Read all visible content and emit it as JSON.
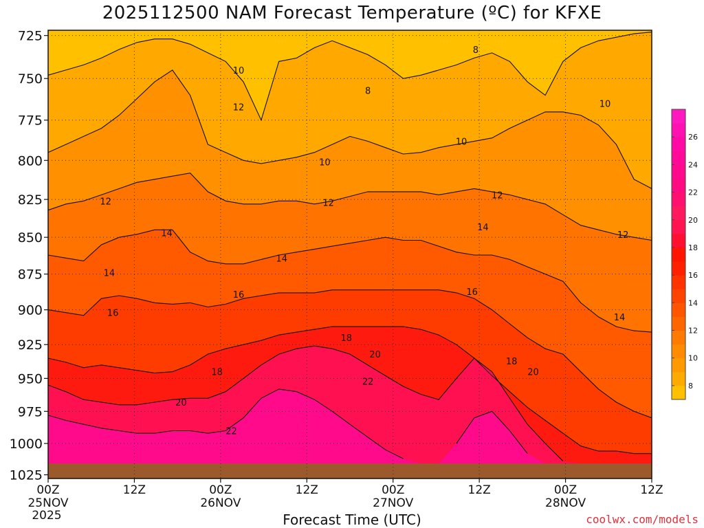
{
  "title": "2025112500 NAM Forecast Temperature (ºC) for KFXE",
  "watermark": "coolwx.com/models",
  "chart_data": {
    "type": "heatmap",
    "title": "2025112500 NAM Forecast Temperature (ºC) for KFXE",
    "xlabel": "Forecast Time (UTC)",
    "ylabel": "",
    "x_ticks": [
      {
        "hour": 0,
        "label": "00Z",
        "date": "25NOV",
        "year": "2025"
      },
      {
        "hour": 12,
        "label": "12Z"
      },
      {
        "hour": 24,
        "label": "00Z",
        "date": "26NOV"
      },
      {
        "hour": 36,
        "label": "12Z"
      },
      {
        "hour": 48,
        "label": "00Z",
        "date": "27NOV"
      },
      {
        "hour": 60,
        "label": "12Z"
      },
      {
        "hour": 72,
        "label": "00Z",
        "date": "28NOV"
      },
      {
        "hour": 84,
        "label": "12Z"
      }
    ],
    "xlim": [
      0,
      84
    ],
    "y_ticks": [
      725,
      750,
      775,
      800,
      825,
      850,
      875,
      900,
      925,
      950,
      975,
      1000,
      1025
    ],
    "ylim": [
      722,
      1028
    ],
    "y_scale": "log",
    "y_inverted": true,
    "grid": true,
    "ground_level_hpa": 1016,
    "ground_color": "#9c5a2c",
    "colorbar": {
      "ticks": [
        8,
        10,
        12,
        14,
        16,
        18,
        20,
        22,
        24,
        26
      ],
      "levels": [
        7,
        8,
        9,
        10,
        11,
        12,
        13,
        14,
        15,
        16,
        17,
        18,
        19,
        20,
        21,
        22,
        23,
        24,
        25,
        26,
        27,
        28
      ],
      "colors": [
        "#ffc000",
        "#ffaa00",
        "#ff9900",
        "#ff8c00",
        "#ff7a00",
        "#ff6600",
        "#ff5500",
        "#ff4400",
        "#ff3300",
        "#ff2000",
        "#ff1500",
        "#ff1030",
        "#ff1450",
        "#ff1a60",
        "#ff1070",
        "#ff0a80",
        "#ff0a8c",
        "#ff0a98",
        "#ff0aa4",
        "#ff10b0",
        "#ff18c0"
      ]
    },
    "series": [
      {
        "level": 8,
        "values": [
          748,
          745,
          742,
          738,
          733,
          729,
          727,
          727,
          730,
          735,
          740,
          752,
          775,
          740,
          738,
          732,
          728,
          732,
          736,
          742,
          750,
          748,
          745,
          742,
          738,
          735,
          740,
          752,
          760,
          740,
          732,
          728,
          726,
          724,
          723
        ]
      },
      {
        "level": 10,
        "values": [
          795,
          790,
          785,
          780,
          772,
          762,
          752,
          745,
          760,
          790,
          795,
          800,
          802,
          800,
          798,
          795,
          790,
          785,
          788,
          792,
          796,
          795,
          792,
          790,
          788,
          786,
          780,
          775,
          770,
          770,
          772,
          778,
          790,
          812,
          818
        ]
      },
      {
        "level": 12,
        "values": [
          832,
          828,
          826,
          822,
          818,
          814,
          812,
          810,
          808,
          820,
          826,
          828,
          828,
          826,
          826,
          828,
          826,
          823,
          820,
          820,
          820,
          820,
          822,
          820,
          818,
          820,
          822,
          825,
          828,
          835,
          842,
          845,
          848,
          850,
          852
        ]
      },
      {
        "level": 14,
        "values": [
          862,
          864,
          866,
          855,
          850,
          848,
          845,
          845,
          860,
          866,
          868,
          868,
          865,
          862,
          860,
          858,
          856,
          854,
          852,
          850,
          852,
          852,
          856,
          860,
          862,
          862,
          865,
          870,
          875,
          880,
          895,
          905,
          912,
          915,
          916
        ]
      },
      {
        "level": 16,
        "values": [
          900,
          902,
          904,
          892,
          890,
          892,
          895,
          896,
          895,
          898,
          896,
          892,
          890,
          888,
          888,
          888,
          886,
          886,
          886,
          886,
          886,
          886,
          886,
          888,
          892,
          900,
          910,
          920,
          928,
          932,
          945,
          958,
          968,
          975,
          980
        ]
      },
      {
        "level": 18,
        "values": [
          935,
          938,
          942,
          940,
          942,
          944,
          946,
          945,
          940,
          932,
          928,
          925,
          922,
          918,
          916,
          914,
          912,
          912,
          912,
          912,
          912,
          914,
          918,
          925,
          935,
          948,
          960,
          972,
          982,
          992,
          1002,
          1006,
          1006,
          1008,
          1008
        ]
      },
      {
        "level": 20,
        "values": [
          955,
          960,
          966,
          968,
          970,
          970,
          968,
          966,
          965,
          965,
          960,
          950,
          940,
          932,
          928,
          926,
          928,
          932,
          940,
          948,
          956,
          962,
          966,
          950,
          935,
          945,
          965,
          985,
          1000,
          1014,
          1016,
          1016,
          1016,
          1016,
          1016
        ]
      },
      {
        "level": 22,
        "values": [
          978,
          982,
          985,
          988,
          990,
          992,
          992,
          990,
          990,
          992,
          990,
          980,
          965,
          958,
          960,
          966,
          975,
          985,
          995,
          1005,
          1012,
          1016,
          1016,
          1000,
          980,
          975,
          990,
          1008,
          1016,
          1016,
          1016,
          1016,
          1016,
          1016,
          1016
        ]
      }
    ],
    "contour_labels": [
      {
        "value": "8",
        "hour": 59.5,
        "hpa": 733
      },
      {
        "value": "8",
        "hour": 44.5,
        "hpa": 757
      },
      {
        "value": "10",
        "hour": 26.5,
        "hpa": 745
      },
      {
        "value": "10",
        "hour": 57.5,
        "hpa": 788
      },
      {
        "value": "10",
        "hour": 77.5,
        "hpa": 765
      },
      {
        "value": "10",
        "hour": 38.5,
        "hpa": 801
      },
      {
        "value": "12",
        "hour": 26.5,
        "hpa": 767
      },
      {
        "value": "12",
        "hour": 8,
        "hpa": 826
      },
      {
        "value": "12",
        "hour": 39,
        "hpa": 827
      },
      {
        "value": "12",
        "hour": 62.5,
        "hpa": 822
      },
      {
        "value": "12",
        "hour": 80,
        "hpa": 848
      },
      {
        "value": "14",
        "hour": 16.5,
        "hpa": 847
      },
      {
        "value": "14",
        "hour": 8.5,
        "hpa": 874
      },
      {
        "value": "14",
        "hour": 32.5,
        "hpa": 864
      },
      {
        "value": "14",
        "hour": 60.5,
        "hpa": 843
      },
      {
        "value": "14",
        "hour": 79.5,
        "hpa": 905
      },
      {
        "value": "16",
        "hour": 9,
        "hpa": 902
      },
      {
        "value": "16",
        "hour": 26.5,
        "hpa": 889
      },
      {
        "value": "16",
        "hour": 59,
        "hpa": 887
      },
      {
        "value": "18",
        "hour": 23.5,
        "hpa": 945
      },
      {
        "value": "18",
        "hour": 41.5,
        "hpa": 920
      },
      {
        "value": "18",
        "hour": 64.5,
        "hpa": 937
      },
      {
        "value": "20",
        "hour": 18.5,
        "hpa": 968
      },
      {
        "value": "20",
        "hour": 45.5,
        "hpa": 932
      },
      {
        "value": "20",
        "hour": 67.5,
        "hpa": 945
      },
      {
        "value": "22",
        "hour": 25.5,
        "hpa": 990
      },
      {
        "value": "22",
        "hour": 44.5,
        "hpa": 952
      }
    ]
  }
}
